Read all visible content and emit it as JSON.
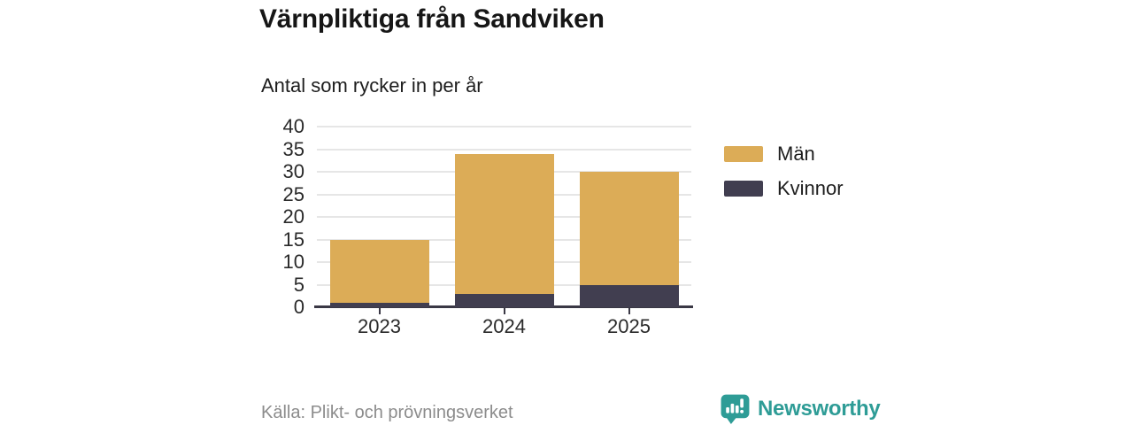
{
  "header": {
    "title": "Värnpliktiga från Sandviken",
    "subtitle": "Antal som rycker in per år"
  },
  "chart_data": {
    "type": "bar",
    "stacked": true,
    "title": "Värnpliktiga från Sandviken",
    "subtitle": "Antal som rycker in per år",
    "categories": [
      "2023",
      "2024",
      "2025"
    ],
    "series": [
      {
        "name": "Män",
        "color": "#DCAC57",
        "values": [
          14,
          31,
          25
        ]
      },
      {
        "name": "Kvinnor",
        "color": "#413E50",
        "values": [
          1,
          3,
          5
        ]
      }
    ],
    "stack_bottom_series": "Kvinnor",
    "stack_totals": [
      15,
      34,
      30
    ],
    "xlabel": "",
    "ylabel": "",
    "ylim": [
      0,
      40
    ],
    "yticks": [
      0,
      5,
      10,
      15,
      20,
      25,
      30,
      35,
      40
    ],
    "grid": true,
    "legend_position": "right"
  },
  "footer": {
    "source": "Källa: Plikt- och prövningsverket",
    "brand": "Newsworthy",
    "brand_color": "#2E9C96"
  },
  "colors": {
    "axis": "#3A3845",
    "grid": "#E6E6E6"
  }
}
